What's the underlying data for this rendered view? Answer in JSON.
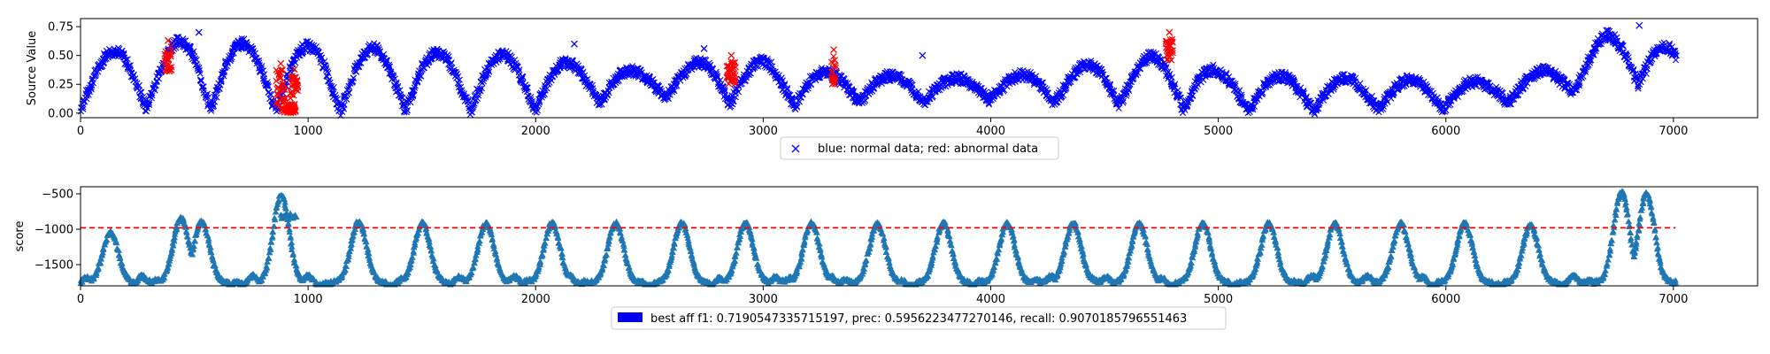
{
  "chart_data": [
    {
      "type": "scatter",
      "title": "",
      "xlabel": "",
      "ylabel": "Source Value",
      "xlim": [
        0,
        7370
      ],
      "ylim": [
        -0.04,
        0.82
      ],
      "xticks": [
        0,
        1000,
        2000,
        3000,
        4000,
        5000,
        6000,
        7000
      ],
      "yticks": [
        0.0,
        0.25,
        0.5,
        0.75
      ],
      "ytick_labels": [
        "0.00",
        "0.25",
        "0.50",
        "0.75"
      ],
      "marker": "x",
      "legend": {
        "label": "blue: normal data; red: abnormal data",
        "position": "lower-center-outside"
      },
      "colors": {
        "normal": "#0000ff",
        "abnormal": "#ff0000"
      },
      "x_end": 7010,
      "series_shape": {
        "period": 285,
        "peaks": [
          [
            0,
            0.52
          ],
          [
            300,
            0.56
          ],
          [
            500,
            0.66
          ],
          [
            800,
            0.58
          ],
          [
            1000,
            0.58
          ],
          [
            1300,
            0.56
          ],
          [
            1600,
            0.52
          ],
          [
            1900,
            0.5
          ],
          [
            2200,
            0.42
          ],
          [
            2500,
            0.35
          ],
          [
            2800,
            0.48
          ],
          [
            3000,
            0.45
          ],
          [
            3300,
            0.35
          ],
          [
            3600,
            0.32
          ],
          [
            3900,
            0.3
          ],
          [
            4200,
            0.34
          ],
          [
            4600,
            0.48
          ],
          [
            4800,
            0.5
          ],
          [
            5000,
            0.36
          ],
          [
            5400,
            0.3
          ],
          [
            5800,
            0.29
          ],
          [
            6200,
            0.27
          ],
          [
            6500,
            0.4
          ],
          [
            6700,
            0.68
          ],
          [
            6900,
            0.7
          ],
          [
            7010,
            0.5
          ]
        ],
        "troughs": [
          [
            0,
            0.05
          ],
          [
            1000,
            0.02
          ],
          [
            2000,
            0.03
          ],
          [
            2500,
            0.15
          ],
          [
            3000,
            0.05
          ],
          [
            3500,
            0.1
          ],
          [
            4000,
            0.12
          ],
          [
            5000,
            0.02
          ],
          [
            6000,
            0.03
          ],
          [
            6500,
            0.15
          ],
          [
            6800,
            0.3
          ],
          [
            7010,
            0.05
          ]
        ]
      },
      "abnormal_segments": [
        {
          "x_start": 370,
          "x_end": 400,
          "y_min": 0.36,
          "y_max": 0.58
        },
        {
          "x_start": 860,
          "x_end": 900,
          "y_min": 0.0,
          "y_max": 0.38
        },
        {
          "x_start": 900,
          "x_end": 945,
          "y_min": 0.0,
          "y_max": 0.08
        },
        {
          "x_start": 925,
          "x_end": 955,
          "y_min": 0.15,
          "y_max": 0.33
        },
        {
          "x_start": 2840,
          "x_end": 2880,
          "y_min": 0.25,
          "y_max": 0.45
        },
        {
          "x_start": 3300,
          "x_end": 3320,
          "y_min": 0.25,
          "y_max": 0.5
        },
        {
          "x_start": 4770,
          "x_end": 4800,
          "y_min": 0.45,
          "y_max": 0.65
        }
      ],
      "outliers_normal": [
        {
          "x": 520,
          "y": 0.7
        },
        {
          "x": 2170,
          "y": 0.6
        },
        {
          "x": 2740,
          "y": 0.56
        },
        {
          "x": 3700,
          "y": 0.5
        },
        {
          "x": 6850,
          "y": 0.76
        }
      ]
    },
    {
      "type": "scatter",
      "title": "",
      "xlabel": "",
      "ylabel": "score",
      "xlim": [
        0,
        7370
      ],
      "ylim": [
        -1800,
        -400
      ],
      "xticks": [
        0,
        1000,
        2000,
        3000,
        4000,
        5000,
        6000,
        7000
      ],
      "yticks": [
        -1500,
        -1000,
        -500
      ],
      "ytick_labels": [
        "−1500",
        "−1000",
        "−500"
      ],
      "marker": "^",
      "color": "#1f77b4",
      "threshold": {
        "y": -980,
        "x_start": 0,
        "x_end": 7010,
        "color": "#ff0000",
        "style": "dashed"
      },
      "x_end": 7010,
      "peaks_x": [
        130,
        440,
        530,
        880,
        1220,
        1500,
        1780,
        2070,
        2350,
        2640,
        2920,
        3210,
        3500,
        3790,
        4070,
        4360,
        4650,
        4930,
        5220,
        5510,
        5800,
        6080,
        6370,
        6770,
        6880
      ],
      "peak_values": [
        -1050,
        -850,
        -900,
        -520,
        -900,
        -920,
        -920,
        -920,
        -920,
        -920,
        -920,
        -920,
        -920,
        -920,
        -920,
        -920,
        -920,
        -920,
        -920,
        -920,
        -920,
        -920,
        -950,
        -480,
        -500
      ],
      "trough_value": -1760,
      "legend": {
        "label": "best aff f1: 0.7190547335715197, prec: 0.5956223477270146, recall: 0.9070185796551463",
        "swatch_color": "#0000ee",
        "position": "lower-center-outside"
      }
    }
  ]
}
